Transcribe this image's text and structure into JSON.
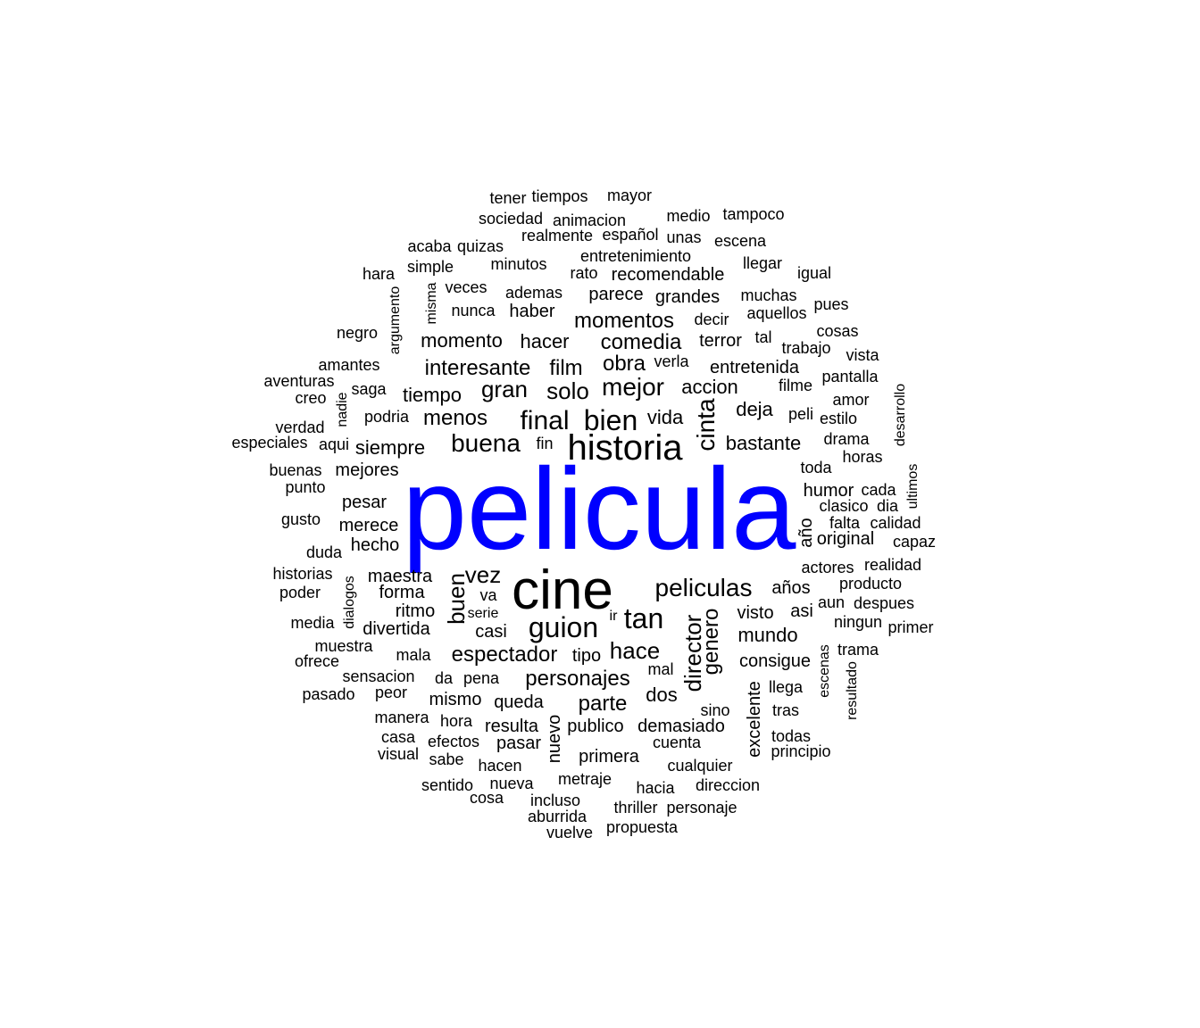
{
  "colors": {
    "background": "#ffffff",
    "primary": "#0000ff",
    "secondary": "#000000"
  },
  "words": [
    {
      "text": "pelicula",
      "highlight": true
    },
    {
      "text": "cine"
    },
    {
      "text": "historia"
    },
    {
      "text": "bien"
    },
    {
      "text": "final"
    },
    {
      "text": "cinta"
    },
    {
      "text": "tan"
    },
    {
      "text": "guion"
    },
    {
      "text": "peliculas"
    },
    {
      "text": "mejor"
    },
    {
      "text": "buena"
    },
    {
      "text": "gran"
    },
    {
      "text": "solo"
    },
    {
      "text": "film"
    },
    {
      "text": "obra"
    },
    {
      "text": "menos"
    },
    {
      "text": "comedia"
    },
    {
      "text": "interesante"
    },
    {
      "text": "momentos"
    },
    {
      "text": "momento"
    },
    {
      "text": "hacer"
    },
    {
      "text": "vida"
    },
    {
      "text": "accion"
    },
    {
      "text": "deja"
    },
    {
      "text": "bastante"
    },
    {
      "text": "entretenida"
    },
    {
      "text": "tiempo"
    },
    {
      "text": "siempre"
    },
    {
      "text": "mejores"
    },
    {
      "text": "espectador"
    },
    {
      "text": "personajes"
    },
    {
      "text": "hace"
    },
    {
      "text": "buen"
    },
    {
      "text": "vez"
    },
    {
      "text": "director"
    },
    {
      "text": "genero"
    },
    {
      "text": "parte"
    },
    {
      "text": "mundo"
    },
    {
      "text": "dos"
    },
    {
      "text": "consigue"
    },
    {
      "text": "maestra"
    },
    {
      "text": "forma"
    },
    {
      "text": "ritmo"
    },
    {
      "text": "divertida"
    },
    {
      "text": "casi"
    },
    {
      "text": "hecho"
    },
    {
      "text": "merece"
    },
    {
      "text": "pesar"
    },
    {
      "text": "parece"
    },
    {
      "text": "grandes"
    },
    {
      "text": "haber"
    },
    {
      "text": "terror"
    },
    {
      "text": "visto"
    },
    {
      "text": "asi"
    },
    {
      "text": "años"
    },
    {
      "text": "mismo"
    },
    {
      "text": "queda"
    },
    {
      "text": "tipo"
    },
    {
      "text": "mal"
    },
    {
      "text": "publico"
    },
    {
      "text": "demasiado"
    },
    {
      "text": "resulta"
    },
    {
      "text": "pasar"
    },
    {
      "text": "hora"
    },
    {
      "text": "nuevo"
    },
    {
      "text": "primera"
    },
    {
      "text": "excelente"
    },
    {
      "text": "humor"
    },
    {
      "text": "año"
    },
    {
      "text": "original"
    },
    {
      "text": "actores"
    },
    {
      "text": "drama"
    },
    {
      "text": "toda"
    },
    {
      "text": "recomendable"
    },
    {
      "text": "entretenimiento"
    },
    {
      "text": "ademas"
    },
    {
      "text": "minutos"
    },
    {
      "text": "nunca"
    },
    {
      "text": "veces"
    },
    {
      "text": "podria"
    },
    {
      "text": "va"
    },
    {
      "text": "serie"
    },
    {
      "text": "mala"
    },
    {
      "text": "da"
    },
    {
      "text": "pena"
    },
    {
      "text": "efectos"
    },
    {
      "text": "hacen"
    },
    {
      "text": "nueva"
    },
    {
      "text": "metraje"
    },
    {
      "text": "incluso"
    },
    {
      "text": "hacia"
    },
    {
      "text": "direccion"
    },
    {
      "text": "cuenta"
    },
    {
      "text": "cualquier"
    },
    {
      "text": "sino"
    },
    {
      "text": "llega"
    },
    {
      "text": "tras"
    },
    {
      "text": "todas"
    },
    {
      "text": "principio"
    },
    {
      "text": "escenas"
    },
    {
      "text": "resultado"
    },
    {
      "text": "trama"
    },
    {
      "text": "primer"
    },
    {
      "text": "ningun"
    },
    {
      "text": "despues"
    },
    {
      "text": "aun"
    },
    {
      "text": "producto"
    },
    {
      "text": "realidad"
    },
    {
      "text": "capaz"
    },
    {
      "text": "falta"
    },
    {
      "text": "calidad"
    },
    {
      "text": "clasico"
    },
    {
      "text": "dia"
    },
    {
      "text": "cada"
    },
    {
      "text": "ultimos"
    },
    {
      "text": "horas"
    },
    {
      "text": "desarrollo"
    },
    {
      "text": "estilo"
    },
    {
      "text": "peli"
    },
    {
      "text": "amor"
    },
    {
      "text": "filme"
    },
    {
      "text": "pantalla"
    },
    {
      "text": "vista"
    },
    {
      "text": "cosas"
    },
    {
      "text": "trabajo"
    },
    {
      "text": "tal"
    },
    {
      "text": "pues"
    },
    {
      "text": "aquellos"
    },
    {
      "text": "muchas"
    },
    {
      "text": "decir"
    },
    {
      "text": "igual"
    },
    {
      "text": "llegar"
    },
    {
      "text": "escena"
    },
    {
      "text": "tampoco"
    },
    {
      "text": "medio"
    },
    {
      "text": "unas"
    },
    {
      "text": "mayor"
    },
    {
      "text": "tiempos"
    },
    {
      "text": "tener"
    },
    {
      "text": "sociedad"
    },
    {
      "text": "animacion"
    },
    {
      "text": "realmente"
    },
    {
      "text": "español"
    },
    {
      "text": "acaba"
    },
    {
      "text": "quizas"
    },
    {
      "text": "rato"
    },
    {
      "text": "simple"
    },
    {
      "text": "hara"
    },
    {
      "text": "argumento"
    },
    {
      "text": "misma"
    },
    {
      "text": "negro"
    },
    {
      "text": "amantes"
    },
    {
      "text": "aventuras"
    },
    {
      "text": "creo"
    },
    {
      "text": "saga"
    },
    {
      "text": "nadie"
    },
    {
      "text": "verdad"
    },
    {
      "text": "especiales"
    },
    {
      "text": "aqui"
    },
    {
      "text": "fin"
    },
    {
      "text": "verla"
    },
    {
      "text": "buenas"
    },
    {
      "text": "punto"
    },
    {
      "text": "gusto"
    },
    {
      "text": "duda"
    },
    {
      "text": "historias"
    },
    {
      "text": "poder"
    },
    {
      "text": "dialogos"
    },
    {
      "text": "media"
    },
    {
      "text": "muestra"
    },
    {
      "text": "ofrece"
    },
    {
      "text": "sensacion"
    },
    {
      "text": "pasado"
    },
    {
      "text": "peor"
    },
    {
      "text": "manera"
    },
    {
      "text": "casa"
    },
    {
      "text": "visual"
    },
    {
      "text": "sabe"
    },
    {
      "text": "sentido"
    },
    {
      "text": "cosa"
    },
    {
      "text": "aburrida"
    },
    {
      "text": "vuelve"
    },
    {
      "text": "thriller"
    },
    {
      "text": "personaje"
    },
    {
      "text": "propuesta"
    },
    {
      "text": "ir"
    }
  ]
}
